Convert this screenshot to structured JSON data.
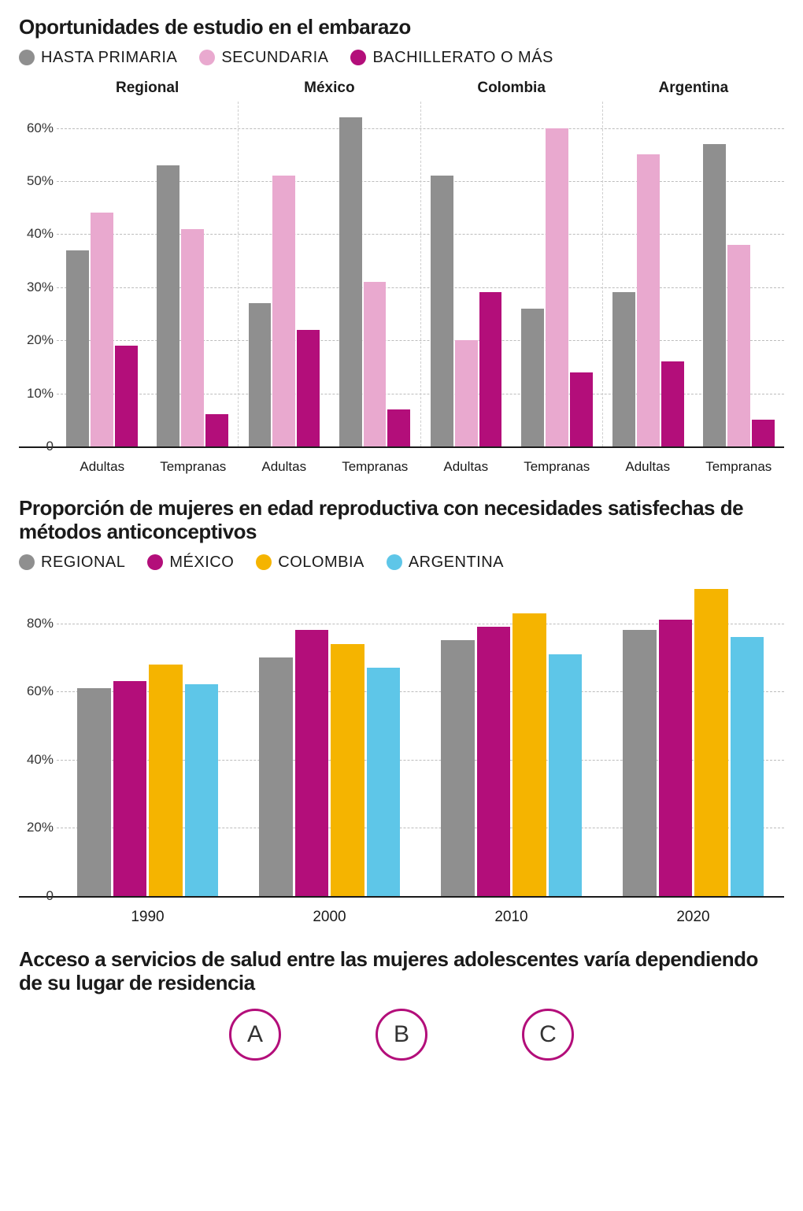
{
  "colors": {
    "gray": "#8f8f8f",
    "pink": "#e9a9cf",
    "magenta": "#b30e7a",
    "yellow": "#f5b400",
    "cyan": "#5ec6e8",
    "text": "#1a1a1a",
    "gridline": "#bdbdbd",
    "circle_border": "#b30e7a"
  },
  "chart1": {
    "title": "Oportunidades de estudio en el embarazo",
    "legend": [
      {
        "label": "HASTA PRIMARIA",
        "color": "gray"
      },
      {
        "label": "SECUNDARIA",
        "color": "pink"
      },
      {
        "label": "BACHILLERATO O MÁS",
        "color": "magenta"
      }
    ],
    "ymax": 65,
    "yticks": [
      0,
      10,
      20,
      30,
      40,
      50,
      60
    ],
    "ytick_labels": [
      "0",
      "10%",
      "20%",
      "30%",
      "40%",
      "50%",
      "60%"
    ],
    "panels": [
      {
        "title": "Regional",
        "groups": [
          {
            "label": "Adultas",
            "values": [
              37,
              44,
              19
            ]
          },
          {
            "label": "Tempranas",
            "values": [
              53,
              41,
              6
            ]
          }
        ]
      },
      {
        "title": "México",
        "groups": [
          {
            "label": "Adultas",
            "values": [
              27,
              51,
              22
            ]
          },
          {
            "label": "Tempranas",
            "values": [
              62,
              31,
              7
            ]
          }
        ]
      },
      {
        "title": "Colombia",
        "groups": [
          {
            "label": "Adultas",
            "values": [
              51,
              20,
              29
            ]
          },
          {
            "label": "Tempranas",
            "values": [
              26,
              60,
              14
            ]
          }
        ]
      },
      {
        "title": "Argentina",
        "groups": [
          {
            "label": "Adultas",
            "values": [
              29,
              55,
              16
            ]
          },
          {
            "label": "Tempranas",
            "values": [
              57,
              38,
              5
            ]
          }
        ]
      }
    ]
  },
  "chart2": {
    "title": "Proporción de mujeres en edad reproductiva con necesidades satisfechas de métodos anticonceptivos",
    "legend": [
      {
        "label": "REGIONAL",
        "color": "gray"
      },
      {
        "label": "MÉXICO",
        "color": "magenta"
      },
      {
        "label": "COLOMBIA",
        "color": "yellow"
      },
      {
        "label": "ARGENTINA",
        "color": "cyan"
      }
    ],
    "ymax": 92,
    "yticks": [
      0,
      20,
      40,
      60,
      80
    ],
    "ytick_labels": [
      "0",
      "20%",
      "40%",
      "60%",
      "80%"
    ],
    "groups": [
      {
        "label": "1990",
        "values": [
          61,
          63,
          68,
          62
        ]
      },
      {
        "label": "2000",
        "values": [
          70,
          78,
          74,
          67
        ]
      },
      {
        "label": "2010",
        "values": [
          75,
          79,
          83,
          71
        ]
      },
      {
        "label": "2020",
        "values": [
          78,
          81,
          90,
          76
        ]
      }
    ]
  },
  "section3": {
    "title": "Acceso a servicios de salud entre las mujeres adolescentes varía dependiendo de su lugar de residencia",
    "circles": [
      "A",
      "B",
      "C"
    ]
  }
}
